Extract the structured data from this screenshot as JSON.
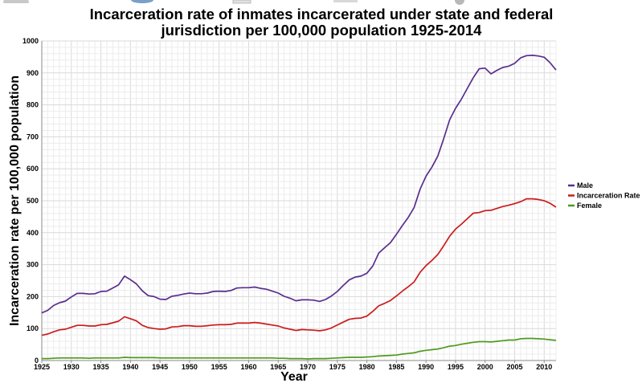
{
  "chart_data": {
    "type": "line",
    "title_lines": [
      "Incarceration rate of inmates incarcerated under state and federal",
      "jurisdiction per 100,000 population 1925-2014"
    ],
    "xlabel": "Year",
    "ylabel": "Incarceration rate per 100,000 population",
    "xlim": [
      1925,
      2012
    ],
    "ylim": [
      0,
      1000
    ],
    "x_ticks": [
      1925,
      1930,
      1935,
      1940,
      1945,
      1950,
      1955,
      1960,
      1965,
      1970,
      1975,
      1980,
      1985,
      1990,
      1995,
      2000,
      2005,
      2010
    ],
    "y_ticks": [
      0,
      100,
      200,
      300,
      400,
      500,
      600,
      700,
      800,
      900,
      1000
    ],
    "grid": true,
    "legend_position": "right",
    "x": [
      1925,
      1926,
      1927,
      1928,
      1929,
      1930,
      1931,
      1932,
      1933,
      1934,
      1935,
      1936,
      1937,
      1938,
      1939,
      1940,
      1941,
      1942,
      1943,
      1944,
      1945,
      1946,
      1947,
      1948,
      1949,
      1950,
      1951,
      1952,
      1953,
      1954,
      1955,
      1956,
      1957,
      1958,
      1959,
      1960,
      1961,
      1962,
      1963,
      1964,
      1965,
      1966,
      1967,
      1968,
      1969,
      1970,
      1971,
      1972,
      1973,
      1974,
      1975,
      1976,
      1977,
      1978,
      1979,
      1980,
      1981,
      1982,
      1983,
      1984,
      1985,
      1986,
      1987,
      1988,
      1989,
      1990,
      1991,
      1992,
      1993,
      1994,
      1995,
      1996,
      1997,
      1998,
      1999,
      2000,
      2001,
      2002,
      2003,
      2004,
      2005,
      2006,
      2007,
      2008,
      2009,
      2010,
      2011,
      2012
    ],
    "series": [
      {
        "name": "Male",
        "color": "#5b2d8e",
        "values": [
          149,
          157,
          172,
          181,
          186,
          199,
          210,
          210,
          208,
          209,
          216,
          217,
          227,
          237,
          264,
          253,
          240,
          218,
          203,
          200,
          192,
          191,
          201,
          204,
          208,
          211,
          209,
          209,
          211,
          216,
          217,
          216,
          219,
          227,
          228,
          228,
          230,
          226,
          223,
          217,
          211,
          201,
          195,
          187,
          190,
          190,
          189,
          185,
          191,
          202,
          216,
          235,
          252,
          261,
          264,
          273,
          296,
          336,
          353,
          369,
          395,
          422,
          448,
          479,
          536,
          577,
          605,
          640,
          694,
          753,
          789,
          818,
          852,
          885,
          913,
          915,
          897,
          908,
          917,
          921,
          930,
          947,
          954,
          955,
          953,
          949,
          932,
          909
        ]
      },
      {
        "name": "Incarceration Rate",
        "color": "#cc1b1b",
        "values": [
          79,
          83,
          90,
          96,
          98,
          104,
          110,
          110,
          108,
          108,
          112,
          113,
          118,
          123,
          137,
          131,
          124,
          110,
          103,
          100,
          98,
          99,
          105,
          106,
          109,
          109,
          107,
          107,
          109,
          111,
          112,
          112,
          113,
          117,
          117,
          117,
          119,
          117,
          114,
          111,
          108,
          102,
          98,
          94,
          97,
          96,
          95,
          93,
          96,
          102,
          111,
          120,
          129,
          132,
          133,
          139,
          154,
          171,
          179,
          188,
          202,
          217,
          231,
          246,
          276,
          297,
          313,
          332,
          359,
          389,
          411,
          427,
          444,
          461,
          463,
          469,
          470,
          476,
          482,
          486,
          491,
          497,
          506,
          506,
          504,
          500,
          492,
          480
        ]
      },
      {
        "name": "Female",
        "color": "#4f9a1e",
        "values": [
          6,
          6,
          7,
          8,
          8,
          8,
          8,
          8,
          7,
          8,
          8,
          8,
          8,
          8,
          10,
          9,
          9,
          9,
          9,
          9,
          8,
          8,
          8,
          8,
          8,
          8,
          8,
          8,
          8,
          8,
          8,
          8,
          8,
          8,
          8,
          8,
          8,
          8,
          8,
          8,
          7,
          7,
          6,
          6,
          6,
          5,
          6,
          6,
          6,
          7,
          8,
          9,
          10,
          10,
          10,
          11,
          12,
          14,
          15,
          16,
          17,
          20,
          22,
          24,
          29,
          32,
          34,
          36,
          40,
          45,
          47,
          51,
          54,
          57,
          59,
          59,
          58,
          60,
          62,
          64,
          64,
          68,
          69,
          69,
          68,
          67,
          65,
          63
        ]
      }
    ]
  }
}
